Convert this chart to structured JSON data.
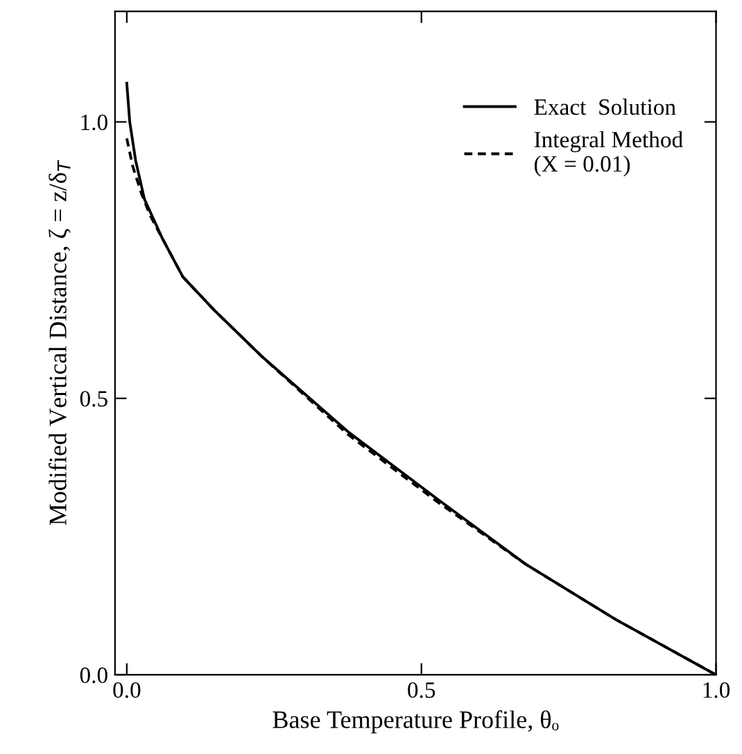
{
  "chart_data": {
    "type": "line",
    "xlabel": "Base Temperature Profile, θₒ",
    "ylabel": "Modified Vertical Distance, ζ = z/δ$_{T}$",
    "xlim": [
      -0.02,
      1.0
    ],
    "ylim": [
      0,
      1.2
    ],
    "xticks": [
      {
        "value": 0,
        "label": "0.0"
      },
      0.5,
      {
        "value": 1,
        "label": "1.0"
      }
    ],
    "yticks": [
      {
        "value": 0,
        "label": "0.0"
      },
      0.5,
      {
        "value": 1,
        "label": "1.0"
      }
    ],
    "legend": "top right",
    "grid": false,
    "series": [
      {
        "name": "Exact  Solution",
        "color": "#000000",
        "line_style": "solid",
        "x": [
          0,
          0.005,
          0.015,
          0.03,
          0.06,
          0.095,
          0.148,
          0.23,
          0.375,
          0.527,
          0.677,
          0.83,
          1.0
        ],
        "values": [
          1.07,
          1.0,
          0.93,
          0.86,
          0.79,
          0.72,
          0.66,
          0.575,
          0.44,
          0.318,
          0.2,
          0.1,
          0
        ]
      },
      {
        "name": "Integral Method\n(X = 0.01)",
        "color": "#000000",
        "line_style": "dashed",
        "x": [
          0,
          0.01,
          0.025,
          0.04,
          0.06,
          0.095,
          0.148,
          0.23,
          0.375,
          0.527,
          0.677,
          0.83,
          1.0
        ],
        "values": [
          0.97,
          0.92,
          0.87,
          0.83,
          0.79,
          0.72,
          0.66,
          0.575,
          0.435,
          0.313,
          0.2,
          0.1,
          0
        ]
      }
    ]
  }
}
